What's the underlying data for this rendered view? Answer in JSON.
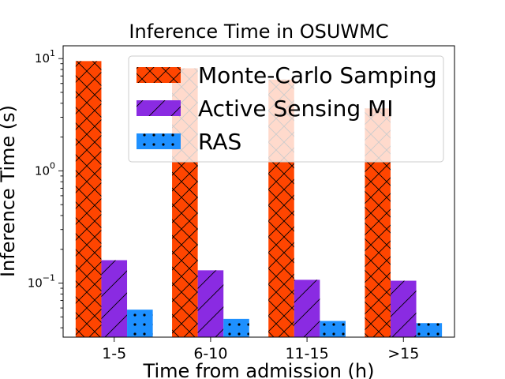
{
  "chart_data": {
    "type": "bar",
    "title": "Inference Time in OSUWMC",
    "xlabel": "Time from admission (h)",
    "ylabel": "Inference Time (s)",
    "yscale": "log",
    "ylim": [
      0.033,
      13
    ],
    "y_ticks": [
      {
        "value": 10,
        "base": "10",
        "exp": "1"
      },
      {
        "value": 1,
        "base": "10",
        "exp": "0"
      },
      {
        "value": 0.1,
        "base": "10",
        "exp": "−1"
      }
    ],
    "categories": [
      "1-5",
      "6-10",
      "11-15",
      ">15"
    ],
    "series": [
      {
        "name": "Monte-Carlo Samping",
        "color": "#FF4500",
        "hatch": "crosshatch",
        "values": [
          9.5,
          8.2,
          6.5,
          3.6
        ]
      },
      {
        "name": "Active Sensing MI",
        "color": "#8A2BE2",
        "hatch": "diagonal",
        "values": [
          0.16,
          0.13,
          0.107,
          0.105
        ]
      },
      {
        "name": "RAS",
        "color": "#1E90FF",
        "hatch": "dots",
        "values": [
          0.058,
          0.048,
          0.046,
          0.044
        ]
      }
    ],
    "legend": "top-right",
    "grid": false
  }
}
